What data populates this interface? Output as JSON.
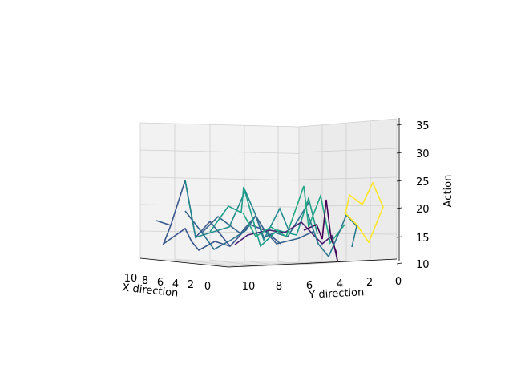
{
  "chart_data": {
    "type": "3d-wireframe",
    "title": "",
    "xlabel": "X direction",
    "ylabel": "Y direction",
    "zlabel": "Action",
    "x_ticks": [
      "10",
      "8",
      "6",
      "4",
      "2",
      "0"
    ],
    "y_ticks": [
      "10",
      "8",
      "6",
      "4",
      "2",
      "0"
    ],
    "z_ticks": [
      "10",
      "15",
      "20",
      "25",
      "30",
      "35"
    ],
    "xlim": [
      0,
      10
    ],
    "ylim": [
      0,
      12
    ],
    "zlim": [
      10,
      36
    ],
    "grid": true,
    "colormap": "viridis",
    "pane_color": "#f2f2f2",
    "grid_color": "#cfcfcf",
    "z_mapping": [
      {
        "value": 10,
        "screen_y": 329
      },
      {
        "value": 15,
        "screen_y": 296
      },
      {
        "value": 20,
        "screen_y": 260
      },
      {
        "value": 25,
        "screen_y": 226
      },
      {
        "value": 30,
        "screen_y": 191
      },
      {
        "value": 35,
        "screen_y": 156
      }
    ],
    "floor_grid_y": 322,
    "x_axis_line": {
      "from": [
        175,
        322
      ],
      "to": [
        285,
        333
      ]
    },
    "y_axis_line": {
      "from": [
        285,
        333
      ],
      "to": [
        495,
        323
      ]
    },
    "z_axis_line": {
      "from": [
        498,
        147
      ],
      "to": [
        498,
        326
      ]
    },
    "back_x_grid": [
      {
        "top": [
          175,
          153
        ],
        "bottom": [
          175,
          322
        ]
      },
      {
        "top": [
          218,
          153
        ],
        "bottom": [
          218,
          322
        ]
      },
      {
        "top": [
          262,
          154
        ],
        "bottom": [
          262,
          322
        ]
      },
      {
        "top": [
          305,
          155
        ],
        "bottom": [
          305,
          322
        ]
      },
      {
        "top": [
          347,
          156
        ],
        "bottom": [
          347,
          322
        ]
      }
    ],
    "back_y_grid": [
      {
        "top": [
          363,
          158
        ],
        "bottom": [
          363,
          327
        ]
      },
      {
        "top": [
          373,
          158
        ],
        "bottom": [
          373,
          327
        ]
      },
      {
        "top": [
          402,
          156
        ],
        "bottom": [
          402,
          326
        ]
      },
      {
        "top": [
          432,
          154
        ],
        "bottom": [
          432,
          325
        ]
      },
      {
        "top": [
          462,
          152
        ],
        "bottom": [
          462,
          324
        ]
      },
      {
        "top": [
          495,
          148
        ],
        "bottom": [
          495,
          323
        ]
      }
    ],
    "back_z_grid_left": [
      {
        "from": [
          175,
          153
        ],
        "to": [
          373,
          158
        ]
      },
      {
        "from": [
          175,
          187
        ],
        "to": [
          373,
          190
        ]
      },
      {
        "from": [
          175,
          221
        ],
        "to": [
          373,
          224
        ]
      },
      {
        "from": [
          175,
          255
        ],
        "to": [
          373,
          257
        ]
      },
      {
        "from": [
          175,
          288
        ],
        "to": [
          373,
          291
        ]
      }
    ],
    "back_z_grid_right": [
      {
        "from": [
          373,
          158
        ],
        "to": [
          495,
          148
        ]
      },
      {
        "from": [
          373,
          190
        ],
        "to": [
          495,
          185
        ]
      },
      {
        "from": [
          373,
          224
        ],
        "to": [
          495,
          221
        ]
      },
      {
        "from": [
          373,
          257
        ],
        "to": [
          495,
          256
        ]
      },
      {
        "from": [
          373,
          291
        ],
        "to": [
          495,
          292
        ]
      }
    ],
    "floor_x_grid": [
      {
        "from": [
          175,
          322
        ],
        "to": [
          285,
          333
        ]
      },
      {
        "from": [
          218,
          322
        ],
        "to": [
          305,
          333
        ]
      },
      {
        "from": [
          262,
          322
        ],
        "to": [
          326,
          332
        ]
      },
      {
        "from": [
          305,
          322
        ],
        "to": [
          348,
          331
        ]
      },
      {
        "from": [
          347,
          322
        ],
        "to": [
          371,
          330
        ]
      }
    ],
    "floor_y_grid": [
      {
        "from": [
          285,
          333
        ],
        "to": [
          373,
          327
        ]
      },
      {
        "from": [
          305,
          333
        ],
        "to": [
          402,
          326
        ]
      },
      {
        "from": [
          326,
          332
        ],
        "to": [
          432,
          325
        ]
      },
      {
        "from": [
          348,
          331
        ],
        "to": [
          462,
          324
        ]
      },
      {
        "from": [
          371,
          330
        ],
        "to": [
          495,
          323
        ]
      }
    ],
    "x_tick_positions": [
      [
        163,
        347
      ],
      [
        181,
        350
      ],
      [
        200,
        352
      ],
      [
        219,
        354
      ],
      [
        238,
        355
      ],
      [
        259,
        357
      ]
    ],
    "y_tick_positions": [
      [
        310,
        357
      ],
      [
        348,
        357
      ],
      [
        386,
        356
      ],
      [
        424,
        354
      ],
      [
        461,
        352
      ],
      [
        497,
        351
      ]
    ],
    "z_tick_positions": [
      [
        527,
        333
      ],
      [
        527,
        298
      ],
      [
        527,
        262
      ],
      [
        527,
        227
      ],
      [
        527,
        192
      ],
      [
        527,
        157
      ]
    ],
    "xlabel_position": [
      187,
      366
    ],
    "ylabel_position": [
      420,
      370
    ],
    "zlabel_position": [
      563,
      238
    ],
    "series": [
      {
        "color": "#39568c",
        "z": 17,
        "points": [
          [
            195,
            275
          ],
          [
            213,
            281
          ],
          [
            204,
            304
          ],
          [
            231,
            285
          ],
          [
            239,
            301
          ],
          [
            248,
            312
          ],
          [
            268,
            301
          ],
          [
            287,
            307
          ]
        ]
      },
      {
        "color": "#39568c",
        "z": 18,
        "points": [
          [
            213,
            281
          ],
          [
            231,
            225
          ],
          [
            244,
            296
          ],
          [
            262,
            276
          ],
          [
            287,
            307
          ],
          [
            312,
            280
          ],
          [
            330,
            287
          ],
          [
            350,
            304
          ]
        ]
      },
      {
        "color": "#33638d",
        "z": 16,
        "points": [
          [
            231,
            263
          ],
          [
            252,
            290
          ],
          [
            272,
            270
          ],
          [
            300,
            291
          ],
          [
            319,
            269
          ],
          [
            330,
            287
          ],
          [
            345,
            304
          ],
          [
            373,
            297
          ],
          [
            390,
            289
          ]
        ]
      },
      {
        "color": "#238a8d",
        "z": 19,
        "points": [
          [
            231,
            225
          ],
          [
            244,
            296
          ],
          [
            263,
            290
          ],
          [
            286,
            283
          ],
          [
            306,
            238
          ],
          [
            319,
            268
          ],
          [
            329,
            299
          ],
          [
            349,
            260
          ],
          [
            361,
            289
          ]
        ]
      },
      {
        "color": "#2d708e",
        "z": 18,
        "points": [
          [
            252,
            290
          ],
          [
            267,
            311
          ],
          [
            287,
            300
          ],
          [
            307,
            287
          ],
          [
            319,
            269
          ],
          [
            329,
            296
          ],
          [
            343,
            290
          ],
          [
            359,
            295
          ],
          [
            386,
            251
          ]
        ]
      },
      {
        "color": "#1f9e89",
        "z": 20,
        "points": [
          [
            262,
            289
          ],
          [
            285,
            257
          ],
          [
            301,
            265
          ],
          [
            304,
            233
          ],
          [
            325,
            307
          ],
          [
            346,
            287
          ],
          [
            370,
            293
          ],
          [
            385,
            247
          ],
          [
            396,
            292
          ]
        ]
      },
      {
        "color": "#482173",
        "z": 15,
        "points": [
          [
            293,
            305
          ],
          [
            309,
            293
          ],
          [
            336,
            287
          ],
          [
            355,
            290
          ],
          [
            376,
            277
          ],
          [
            393,
            295
          ],
          [
            402,
            304
          ],
          [
            414,
            294
          ],
          [
            421,
            325
          ]
        ]
      },
      {
        "color": "#22a884",
        "z": 21,
        "points": [
          [
            303,
            265
          ],
          [
            319,
            295
          ],
          [
            338,
            283
          ],
          [
            357,
            295
          ],
          [
            379,
            232
          ],
          [
            385,
            283
          ],
          [
            400,
            244
          ],
          [
            412,
            303
          ],
          [
            430,
            280
          ]
        ]
      },
      {
        "color": "#440154",
        "z": 12,
        "points": [
          [
            379,
            287
          ],
          [
            395,
            280
          ],
          [
            402,
            298
          ],
          [
            407,
            249
          ],
          [
            413,
            297
          ],
          [
            419,
            313
          ],
          [
            421,
            325
          ]
        ]
      },
      {
        "color": "#2a788e",
        "z": 17,
        "points": [
          [
            384,
            267
          ],
          [
            397,
            304
          ],
          [
            410,
            320
          ],
          [
            424,
            288
          ],
          [
            432,
            268
          ],
          [
            445,
            282
          ],
          [
            439,
            308
          ]
        ]
      },
      {
        "color": "#fde725",
        "z": 24,
        "points": [
          [
            431,
            266
          ],
          [
            436,
            243
          ],
          [
            452,
            255
          ],
          [
            465,
            228
          ],
          [
            478,
            258
          ],
          [
            460,
            302
          ],
          [
            445,
            280
          ],
          [
            431,
            266
          ]
        ]
      }
    ]
  }
}
